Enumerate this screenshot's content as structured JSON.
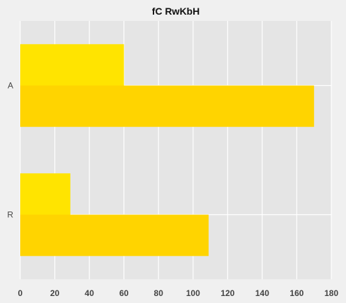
{
  "chart_data": {
    "type": "bar",
    "orientation": "horizontal",
    "title": "fC RwKbH",
    "xlabel": "",
    "ylabel": "",
    "categories": [
      "R",
      "A"
    ],
    "series": [
      {
        "values": [
          29,
          60
        ],
        "color": "#ffe400"
      },
      {
        "values": [
          109,
          170
        ],
        "color": "#ffd400"
      }
    ],
    "xlim": [
      0,
      180
    ],
    "xticks": [
      "0",
      "20",
      "40",
      "60",
      "80",
      "100",
      "120",
      "140",
      "160",
      "180"
    ],
    "grid": true,
    "legend": "none",
    "background": "#f0f0f0",
    "plot_background": "#e5e5e5"
  }
}
